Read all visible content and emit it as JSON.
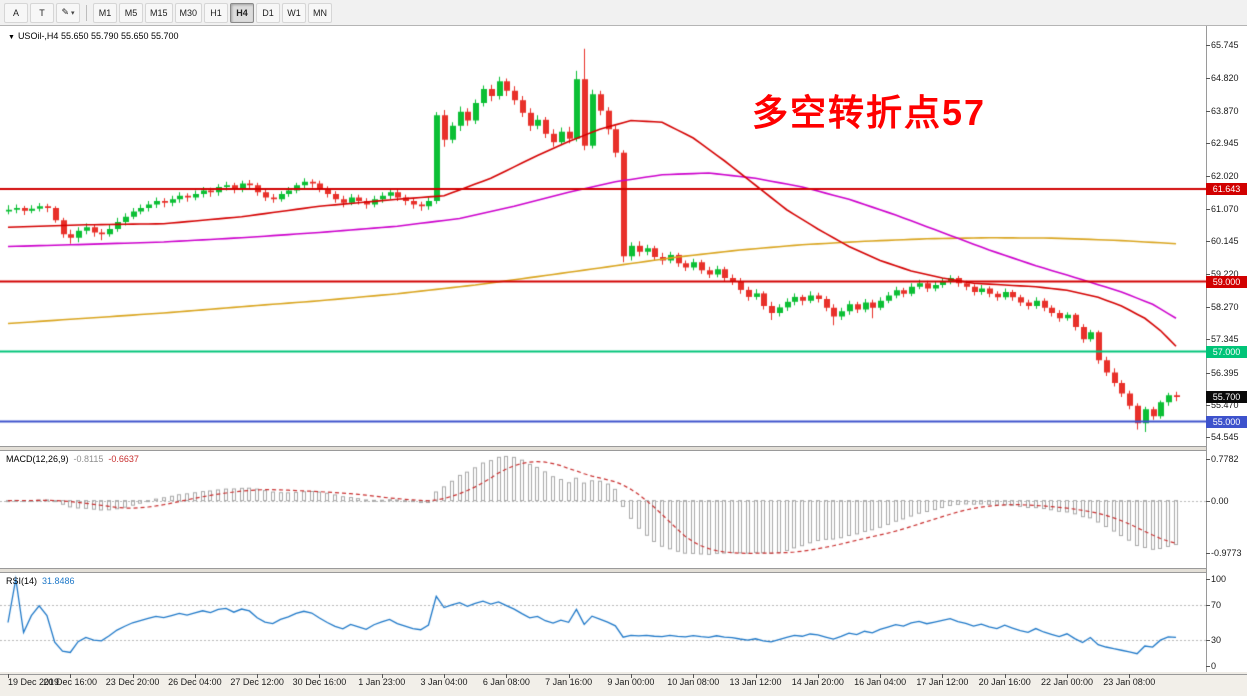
{
  "toolbar": {
    "font_button": "A",
    "text_button": "T",
    "draw_button": "✎",
    "chevron": "▾",
    "timeframes": [
      "M1",
      "M5",
      "M15",
      "M30",
      "H1",
      "H4",
      "D1",
      "W1",
      "MN"
    ],
    "active_timeframe": "H4"
  },
  "chart": {
    "title_marker": "▼",
    "title": "USOil-,H4 55.650 55.790 55.650 55.700",
    "annotation": {
      "text": "多空转折点57",
      "color": "#ff0000"
    },
    "scale": {
      "min": 54.3,
      "max": 66.3
    },
    "price_axis": [
      "65.745",
      "64.820",
      "63.870",
      "62.945",
      "62.020",
      "61.070",
      "60.145",
      "59.220",
      "58.270",
      "57.345",
      "56.395",
      "55.470",
      "54.545"
    ],
    "levels": [
      {
        "price": 61.643,
        "label": "61.643",
        "color": "#d10000"
      },
      {
        "price": 59.0,
        "label": "59.000",
        "color": "#d10000"
      },
      {
        "price": 57.0,
        "label": "57.000",
        "color": "#00c478"
      },
      {
        "price": 55.0,
        "label": "55.000",
        "color": "#3d52cc"
      }
    ],
    "current_price": {
      "price": 55.7,
      "label": "55.700",
      "badge_color": "#0a0a0a"
    },
    "colors": {
      "up": "#0bbf34",
      "down": "#e8302a",
      "ma_fast": "#d40000",
      "ma_mid": "#cc00cc",
      "ma_slow": "#d9a520"
    }
  },
  "chart_data": {
    "type": "candlestick",
    "symbol": "USOil-",
    "timeframe": "H4",
    "ohlc": [
      [
        61.0,
        61.18,
        60.92,
        61.05
      ],
      [
        61.05,
        61.2,
        60.95,
        61.1
      ],
      [
        61.1,
        61.16,
        60.9,
        61.02
      ],
      [
        61.02,
        61.18,
        60.95,
        61.08
      ],
      [
        61.08,
        61.24,
        61.0,
        61.15
      ],
      [
        61.15,
        61.22,
        60.98,
        61.1
      ],
      [
        61.1,
        61.15,
        60.68,
        60.75
      ],
      [
        60.75,
        60.82,
        60.25,
        60.35
      ],
      [
        60.35,
        60.48,
        60.08,
        60.25
      ],
      [
        60.25,
        60.55,
        60.12,
        60.45
      ],
      [
        60.45,
        60.66,
        60.35,
        60.55
      ],
      [
        60.55,
        60.62,
        60.28,
        60.4
      ],
      [
        60.4,
        60.5,
        60.18,
        60.35
      ],
      [
        60.35,
        60.62,
        60.28,
        60.5
      ],
      [
        60.5,
        60.82,
        60.42,
        60.7
      ],
      [
        60.7,
        60.95,
        60.6,
        60.85
      ],
      [
        60.85,
        61.1,
        60.78,
        61.0
      ],
      [
        61.0,
        61.2,
        60.92,
        61.1
      ],
      [
        61.1,
        61.3,
        61.0,
        61.2
      ],
      [
        61.2,
        61.4,
        61.1,
        61.3
      ],
      [
        61.3,
        61.38,
        61.12,
        61.25
      ],
      [
        61.25,
        61.45,
        61.15,
        61.35
      ],
      [
        61.35,
        61.55,
        61.25,
        61.45
      ],
      [
        61.45,
        61.52,
        61.28,
        61.4
      ],
      [
        61.4,
        61.6,
        61.32,
        61.5
      ],
      [
        61.5,
        61.7,
        61.4,
        61.6
      ],
      [
        61.6,
        61.68,
        61.42,
        61.55
      ],
      [
        61.55,
        61.78,
        61.45,
        61.7
      ],
      [
        61.7,
        61.85,
        61.6,
        61.75
      ],
      [
        61.75,
        61.82,
        61.52,
        61.65
      ],
      [
        61.65,
        61.88,
        61.55,
        61.8
      ],
      [
        61.8,
        61.9,
        61.62,
        61.75
      ],
      [
        61.75,
        61.82,
        61.45,
        61.55
      ],
      [
        61.55,
        61.62,
        61.3,
        61.4
      ],
      [
        61.4,
        61.5,
        61.25,
        61.35
      ],
      [
        61.35,
        61.58,
        61.28,
        61.5
      ],
      [
        61.5,
        61.7,
        61.42,
        61.6
      ],
      [
        61.6,
        61.82,
        61.52,
        61.75
      ],
      [
        61.75,
        61.95,
        61.65,
        61.85
      ],
      [
        61.85,
        61.92,
        61.68,
        61.8
      ],
      [
        61.8,
        61.88,
        61.55,
        61.65
      ],
      [
        61.65,
        61.72,
        61.4,
        61.5
      ],
      [
        61.5,
        61.58,
        61.25,
        61.35
      ],
      [
        61.35,
        61.45,
        61.12,
        61.25
      ],
      [
        61.25,
        61.5,
        61.18,
        61.4
      ],
      [
        61.4,
        61.48,
        61.2,
        61.3
      ],
      [
        61.3,
        61.38,
        61.08,
        61.2
      ],
      [
        61.2,
        61.45,
        61.12,
        61.35
      ],
      [
        61.35,
        61.55,
        61.25,
        61.45
      ],
      [
        61.45,
        61.65,
        61.35,
        61.55
      ],
      [
        61.55,
        61.62,
        61.3,
        61.4
      ],
      [
        61.4,
        61.48,
        61.18,
        61.3
      ],
      [
        61.3,
        61.38,
        61.08,
        61.2
      ],
      [
        61.2,
        61.28,
        61.02,
        61.15
      ],
      [
        61.15,
        61.4,
        61.05,
        61.3
      ],
      [
        61.3,
        63.84,
        61.22,
        63.75
      ],
      [
        63.75,
        63.9,
        62.85,
        63.05
      ],
      [
        63.05,
        63.55,
        62.95,
        63.45
      ],
      [
        63.45,
        64.0,
        63.3,
        63.85
      ],
      [
        63.85,
        63.95,
        63.45,
        63.6
      ],
      [
        63.6,
        64.2,
        63.5,
        64.1
      ],
      [
        64.1,
        64.6,
        64.0,
        64.5
      ],
      [
        64.5,
        64.62,
        64.15,
        64.3
      ],
      [
        64.3,
        64.85,
        64.2,
        64.72
      ],
      [
        64.72,
        64.8,
        64.3,
        64.45
      ],
      [
        64.45,
        64.58,
        64.05,
        64.18
      ],
      [
        64.18,
        64.3,
        63.7,
        63.82
      ],
      [
        63.82,
        63.95,
        63.3,
        63.45
      ],
      [
        63.45,
        63.75,
        63.35,
        63.62
      ],
      [
        63.62,
        63.7,
        63.1,
        63.22
      ],
      [
        63.22,
        63.35,
        62.85,
        62.98
      ],
      [
        62.98,
        63.4,
        62.9,
        63.28
      ],
      [
        63.28,
        63.42,
        62.95,
        63.08
      ],
      [
        63.08,
        65.02,
        63.0,
        64.78
      ],
      [
        64.78,
        65.65,
        62.75,
        62.88
      ],
      [
        62.88,
        64.48,
        62.8,
        64.35
      ],
      [
        64.35,
        64.45,
        63.75,
        63.88
      ],
      [
        63.88,
        63.98,
        63.2,
        63.35
      ],
      [
        63.35,
        63.45,
        62.55,
        62.68
      ],
      [
        62.68,
        62.75,
        59.55,
        59.72
      ],
      [
        59.72,
        60.12,
        59.6,
        60.02
      ],
      [
        60.02,
        60.15,
        59.72,
        59.85
      ],
      [
        59.85,
        60.05,
        59.75,
        59.95
      ],
      [
        59.95,
        60.02,
        59.6,
        59.7
      ],
      [
        59.7,
        59.82,
        59.48,
        59.6
      ],
      [
        59.6,
        59.85,
        59.52,
        59.76
      ],
      [
        59.76,
        59.82,
        59.42,
        59.52
      ],
      [
        59.52,
        59.6,
        59.3,
        59.4
      ],
      [
        59.4,
        59.65,
        59.32,
        59.55
      ],
      [
        59.55,
        59.62,
        59.22,
        59.32
      ],
      [
        59.32,
        59.42,
        59.1,
        59.2
      ],
      [
        59.2,
        59.45,
        59.12,
        59.35
      ],
      [
        59.35,
        59.42,
        59.0,
        59.1
      ],
      [
        59.1,
        59.2,
        58.9,
        59.0
      ],
      [
        59.0,
        59.1,
        58.65,
        58.76
      ],
      [
        58.76,
        58.85,
        58.45,
        58.56
      ],
      [
        58.56,
        58.78,
        58.48,
        58.66
      ],
      [
        58.66,
        58.72,
        58.2,
        58.3
      ],
      [
        58.3,
        58.42,
        57.9,
        58.1
      ],
      [
        58.1,
        58.35,
        58.0,
        58.26
      ],
      [
        58.26,
        58.52,
        58.16,
        58.42
      ],
      [
        58.42,
        58.66,
        58.32,
        58.56
      ],
      [
        58.56,
        58.62,
        58.32,
        58.45
      ],
      [
        58.45,
        58.72,
        58.38,
        58.6
      ],
      [
        58.6,
        58.68,
        58.4,
        58.5
      ],
      [
        58.5,
        58.58,
        58.15,
        58.25
      ],
      [
        58.25,
        58.35,
        57.75,
        58.0
      ],
      [
        58.0,
        58.25,
        57.9,
        58.15
      ],
      [
        58.15,
        58.45,
        58.05,
        58.35
      ],
      [
        58.35,
        58.42,
        58.1,
        58.2
      ],
      [
        58.2,
        58.5,
        58.12,
        58.4
      ],
      [
        58.4,
        58.48,
        57.95,
        58.25
      ],
      [
        58.25,
        58.55,
        58.18,
        58.45
      ],
      [
        58.45,
        58.7,
        58.38,
        58.6
      ],
      [
        58.6,
        58.85,
        58.52,
        58.75
      ],
      [
        58.75,
        58.82,
        58.55,
        58.65
      ],
      [
        58.65,
        58.95,
        58.58,
        58.85
      ],
      [
        58.85,
        59.05,
        58.78,
        58.95
      ],
      [
        58.95,
        59.02,
        58.7,
        58.8
      ],
      [
        58.8,
        59.0,
        58.72,
        58.9
      ],
      [
        58.9,
        59.1,
        58.82,
        59.0
      ],
      [
        59.0,
        59.18,
        58.92,
        59.1
      ],
      [
        59.1,
        59.16,
        58.85,
        58.95
      ],
      [
        58.95,
        59.02,
        58.75,
        58.85
      ],
      [
        58.85,
        58.92,
        58.6,
        58.7
      ],
      [
        58.7,
        58.9,
        58.62,
        58.8
      ],
      [
        58.8,
        58.86,
        58.55,
        58.65
      ],
      [
        58.65,
        58.72,
        58.45,
        58.55
      ],
      [
        58.55,
        58.8,
        58.48,
        58.7
      ],
      [
        58.7,
        58.76,
        58.45,
        58.55
      ],
      [
        58.55,
        58.62,
        58.3,
        58.4
      ],
      [
        58.4,
        58.48,
        58.2,
        58.3
      ],
      [
        58.3,
        58.55,
        58.22,
        58.45
      ],
      [
        58.45,
        58.52,
        58.15,
        58.25
      ],
      [
        58.25,
        58.32,
        58.0,
        58.1
      ],
      [
        58.1,
        58.18,
        57.85,
        57.95
      ],
      [
        57.95,
        58.12,
        57.88,
        58.05
      ],
      [
        58.05,
        58.1,
        57.6,
        57.7
      ],
      [
        57.7,
        57.78,
        57.25,
        57.35
      ],
      [
        57.35,
        57.62,
        57.28,
        57.55
      ],
      [
        57.55,
        57.6,
        56.65,
        56.75
      ],
      [
        56.75,
        56.85,
        56.3,
        56.4
      ],
      [
        56.4,
        56.52,
        56.0,
        56.1
      ],
      [
        56.1,
        56.18,
        55.7,
        55.8
      ],
      [
        55.8,
        55.88,
        55.35,
        55.45
      ],
      [
        55.45,
        55.52,
        54.77,
        54.95
      ],
      [
        54.95,
        55.42,
        54.7,
        55.35
      ],
      [
        55.35,
        55.42,
        55.05,
        55.15
      ],
      [
        55.15,
        55.6,
        55.08,
        55.55
      ],
      [
        55.55,
        55.82,
        55.45,
        55.75
      ],
      [
        55.75,
        55.85,
        55.58,
        55.7
      ]
    ],
    "ma_fast_points": [
      [
        0,
        60.55
      ],
      [
        10,
        60.62
      ],
      [
        20,
        60.65
      ],
      [
        30,
        60.85
      ],
      [
        40,
        61.15
      ],
      [
        50,
        61.35
      ],
      [
        56,
        61.45
      ],
      [
        62,
        61.95
      ],
      [
        68,
        62.6
      ],
      [
        72,
        63.0
      ],
      [
        76,
        63.35
      ],
      [
        80,
        63.6
      ],
      [
        84,
        63.55
      ],
      [
        88,
        63.1
      ],
      [
        92,
        62.45
      ],
      [
        96,
        61.75
      ],
      [
        100,
        61.05
      ],
      [
        104,
        60.5
      ],
      [
        108,
        60.0
      ],
      [
        112,
        59.6
      ],
      [
        116,
        59.3
      ],
      [
        120,
        59.1
      ],
      [
        124,
        58.95
      ],
      [
        128,
        58.9
      ],
      [
        132,
        58.85
      ],
      [
        136,
        58.75
      ],
      [
        140,
        58.55
      ],
      [
        143,
        58.3
      ],
      [
        146,
        57.95
      ],
      [
        148,
        57.6
      ],
      [
        150,
        57.15
      ]
    ],
    "ma_mid_points": [
      [
        0,
        60.0
      ],
      [
        10,
        60.06
      ],
      [
        20,
        60.13
      ],
      [
        30,
        60.25
      ],
      [
        40,
        60.4
      ],
      [
        50,
        60.58
      ],
      [
        58,
        60.8
      ],
      [
        65,
        61.15
      ],
      [
        72,
        61.55
      ],
      [
        78,
        61.85
      ],
      [
        84,
        62.05
      ],
      [
        90,
        62.1
      ],
      [
        96,
        61.95
      ],
      [
        102,
        61.7
      ],
      [
        108,
        61.35
      ],
      [
        114,
        60.9
      ],
      [
        120,
        60.4
      ],
      [
        126,
        59.9
      ],
      [
        132,
        59.45
      ],
      [
        138,
        59.05
      ],
      [
        143,
        58.7
      ],
      [
        147,
        58.35
      ],
      [
        150,
        57.95
      ]
    ],
    "ma_slow_points": [
      [
        0,
        57.8
      ],
      [
        10,
        57.95
      ],
      [
        20,
        58.1
      ],
      [
        30,
        58.28
      ],
      [
        40,
        58.45
      ],
      [
        50,
        58.65
      ],
      [
        60,
        58.9
      ],
      [
        70,
        59.2
      ],
      [
        78,
        59.45
      ],
      [
        86,
        59.7
      ],
      [
        94,
        59.9
      ],
      [
        102,
        60.05
      ],
      [
        110,
        60.15
      ],
      [
        118,
        60.22
      ],
      [
        126,
        60.25
      ],
      [
        134,
        60.24
      ],
      [
        142,
        60.18
      ],
      [
        150,
        60.08
      ]
    ],
    "time_labels": [
      [
        0,
        "19 Dec 2019"
      ],
      [
        8,
        "20 Dec 16:00"
      ],
      [
        16,
        "23 Dec 20:00"
      ],
      [
        24,
        "26 Dec 04:00"
      ],
      [
        32,
        "27 Dec 12:00"
      ],
      [
        40,
        "30 Dec 16:00"
      ],
      [
        48,
        "1 Jan 23:00"
      ],
      [
        56,
        "3 Jan 04:00"
      ],
      [
        64,
        "6 Jan 08:00"
      ],
      [
        72,
        "7 Jan 16:00"
      ],
      [
        80,
        "9 Jan 00:00"
      ],
      [
        88,
        "10 Jan 08:00"
      ],
      [
        96,
        "13 Jan 12:00"
      ],
      [
        104,
        "14 Jan 20:00"
      ],
      [
        112,
        "16 Jan 04:00"
      ],
      [
        120,
        "17 Jan 12:00"
      ],
      [
        128,
        "20 Jan 16:00"
      ],
      [
        136,
        "22 Jan 00:00"
      ],
      [
        144,
        "23 Jan 08:00"
      ]
    ]
  },
  "macd": {
    "name": "MACD(12,26,9)",
    "value_main": "-0.8115",
    "value_signal": "-0.6637",
    "axis": [
      "0.7782",
      "0.00",
      "-0.9773"
    ],
    "fast": 12,
    "slow": 26,
    "signal": 9,
    "scale": {
      "min": -1.25,
      "max": 0.92
    },
    "histogram_color": "#a8a8a8",
    "signal_color": "#c93030"
  },
  "rsi": {
    "name": "RSI(14)",
    "value": "31.8486",
    "period": 14,
    "axis": [
      "100",
      "70",
      "30",
      "0"
    ],
    "levels": [
      70,
      30
    ],
    "line_color": "#1e78c8"
  }
}
